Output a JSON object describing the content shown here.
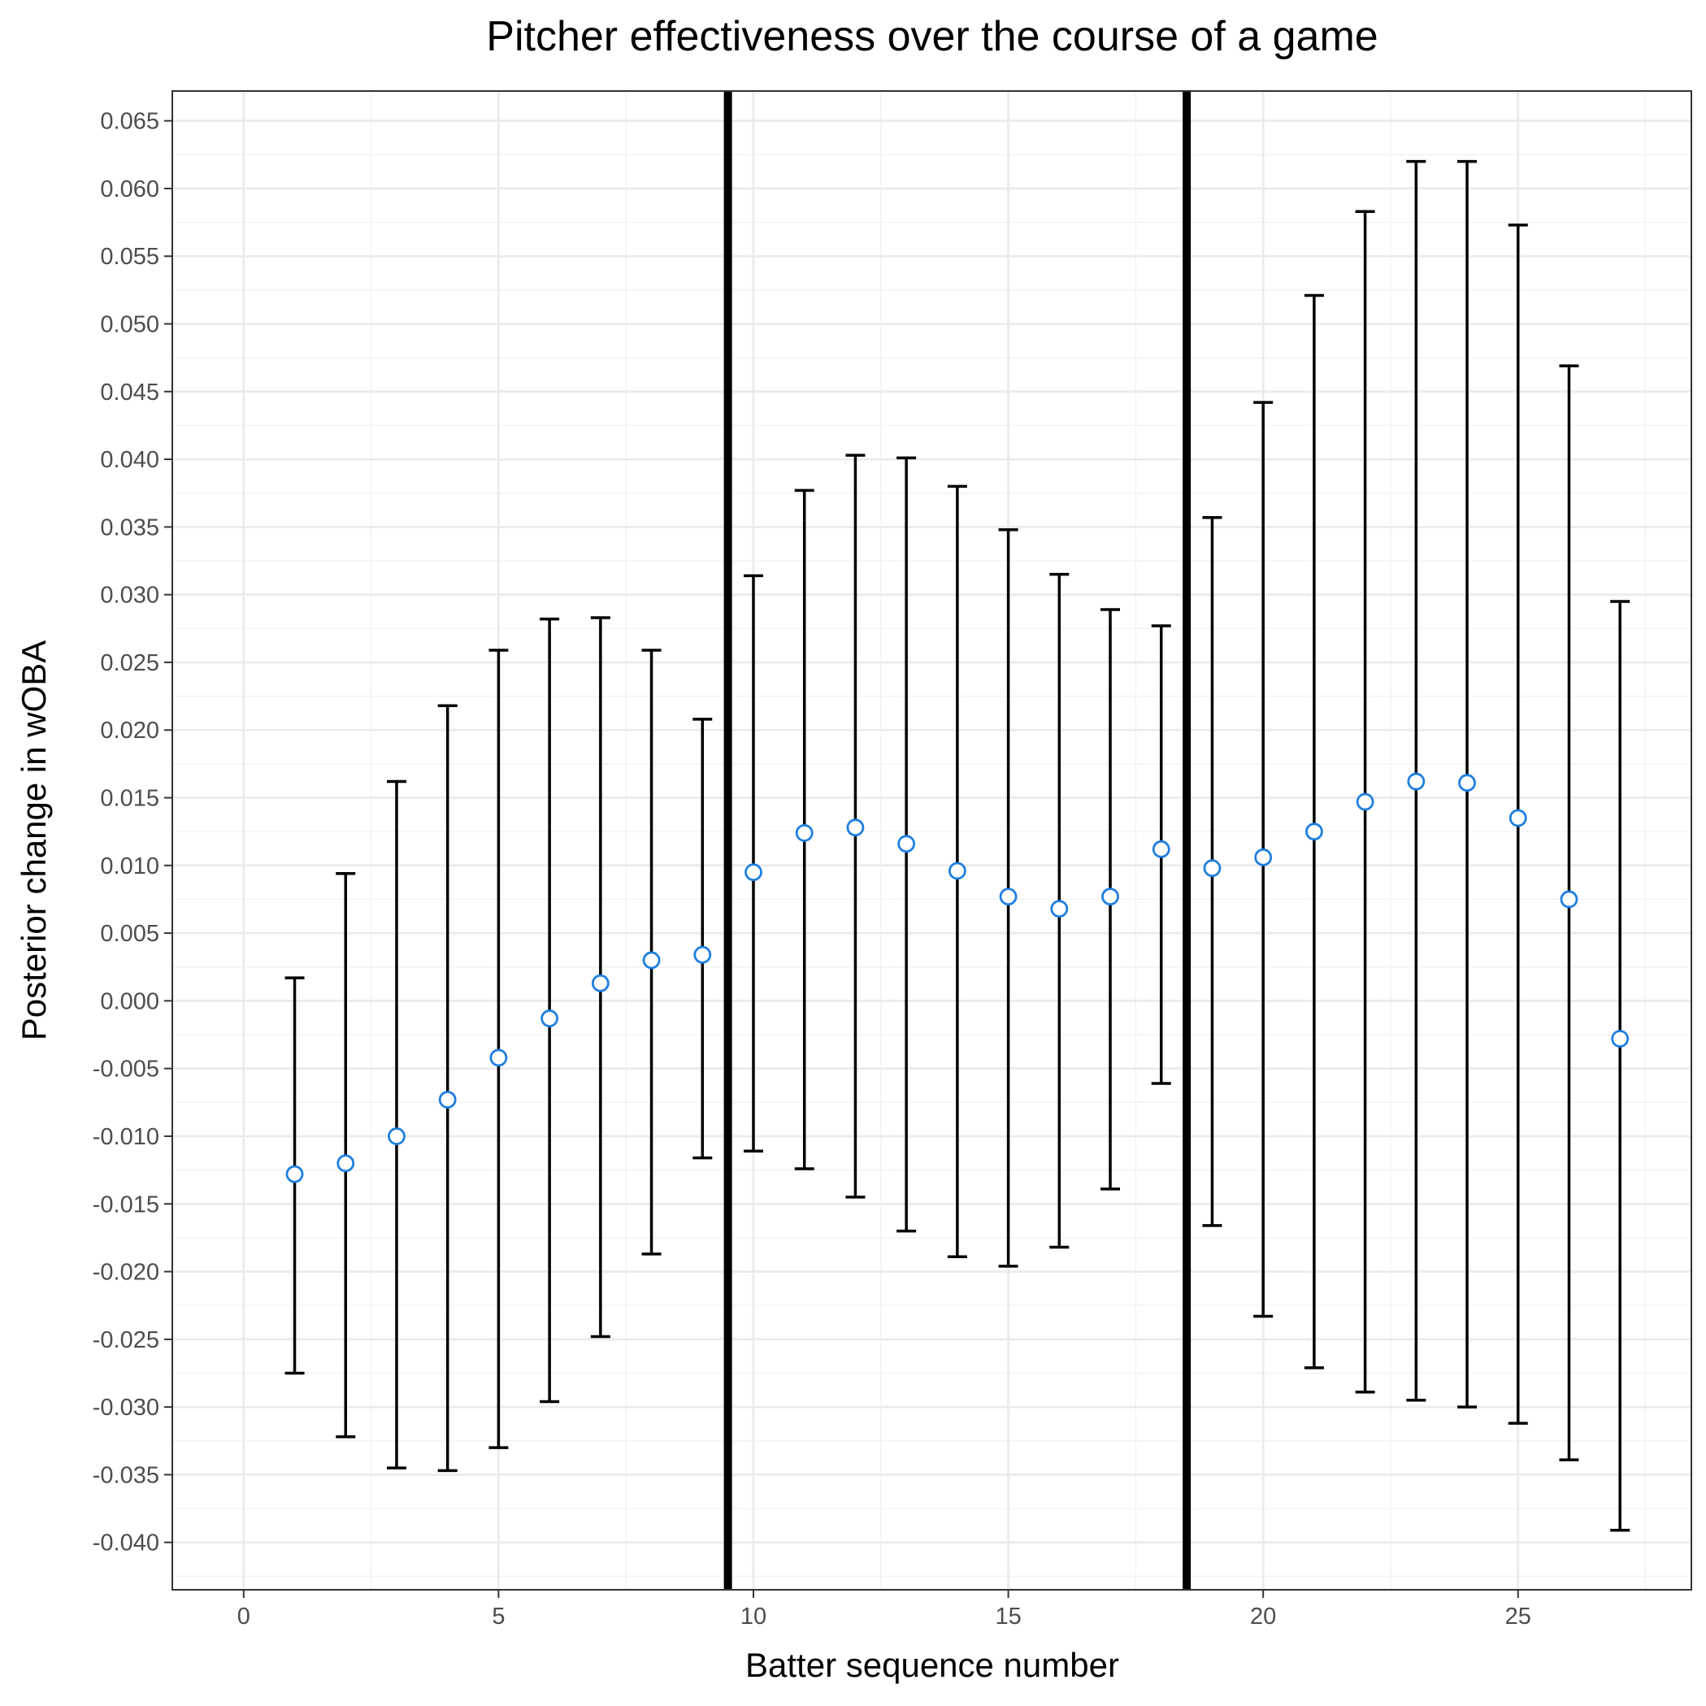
{
  "chart_data": {
    "type": "scatter",
    "title": "Pitcher effectiveness over the course of a game",
    "xlabel": "Batter sequence number",
    "ylabel": "Posterior change in wOBA",
    "xlim": [
      -1.4,
      28.4
    ],
    "ylim": [
      -0.0435,
      0.0672
    ],
    "x_ticks": [
      0,
      5,
      10,
      15,
      20,
      25
    ],
    "x_tick_labels": [
      "0",
      "5",
      "10",
      "15",
      "20",
      "25"
    ],
    "y_ticks": [
      -0.04,
      -0.035,
      -0.03,
      -0.025,
      -0.02,
      -0.015,
      -0.01,
      -0.005,
      0.0,
      0.005,
      0.01,
      0.015,
      0.02,
      0.025,
      0.03,
      0.035,
      0.04,
      0.045,
      0.05,
      0.055,
      0.06,
      0.065
    ],
    "y_tick_labels": [
      "-0.040",
      "-0.035",
      "-0.030",
      "-0.025",
      "-0.020",
      "-0.015",
      "-0.010",
      "-0.005",
      "0.000",
      "0.005",
      "0.010",
      "0.015",
      "0.020",
      "0.025",
      "0.030",
      "0.035",
      "0.040",
      "0.045",
      "0.050",
      "0.055",
      "0.060",
      "0.065"
    ],
    "vertical_lines": [
      9.5,
      18.5
    ],
    "grid": true,
    "point_color": "#1f7fe0",
    "x": [
      1,
      2,
      3,
      4,
      5,
      6,
      7,
      8,
      9,
      10,
      11,
      12,
      13,
      14,
      15,
      16,
      17,
      18,
      19,
      20,
      21,
      22,
      23,
      24,
      25,
      26,
      27
    ],
    "y": [
      -0.0128,
      -0.012,
      -0.01,
      -0.0073,
      -0.0042,
      -0.0013,
      0.0013,
      0.003,
      0.0034,
      0.0095,
      0.0124,
      0.0128,
      0.0116,
      0.0096,
      0.0077,
      0.0068,
      0.0077,
      0.0112,
      0.0098,
      0.0106,
      0.0125,
      0.0147,
      0.0162,
      0.0161,
      0.0135,
      0.0075,
      -0.0028
    ],
    "lower": [
      -0.0275,
      -0.0322,
      -0.0345,
      -0.0347,
      -0.033,
      -0.0296,
      -0.0248,
      -0.0187,
      -0.0116,
      -0.0111,
      -0.0124,
      -0.0145,
      -0.017,
      -0.0189,
      -0.0196,
      -0.0182,
      -0.0139,
      -0.0061,
      -0.0166,
      -0.0233,
      -0.0271,
      -0.0289,
      -0.0295,
      -0.03,
      -0.0312,
      -0.0339,
      -0.0391
    ],
    "upper": [
      0.0017,
      0.0094,
      0.0162,
      0.0218,
      0.0259,
      0.0282,
      0.0283,
      0.0259,
      0.0208,
      0.0314,
      0.0377,
      0.0403,
      0.0401,
      0.038,
      0.0348,
      0.0315,
      0.0289,
      0.0277,
      0.0357,
      0.0442,
      0.0521,
      0.0583,
      0.062,
      0.062,
      0.0573,
      0.0469,
      0.0295
    ]
  }
}
